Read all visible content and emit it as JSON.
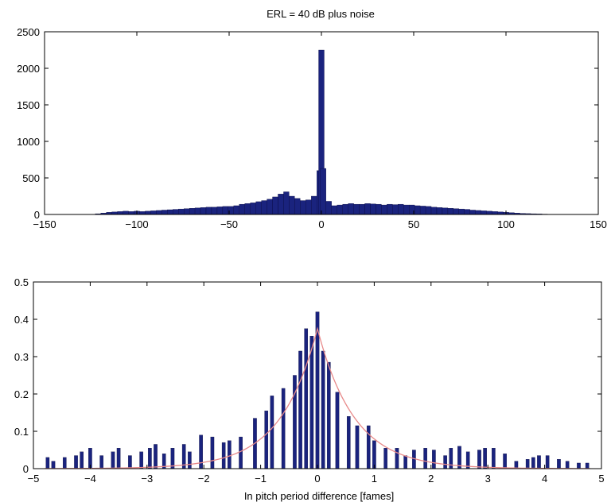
{
  "chart_data": [
    {
      "type": "bar",
      "title": "ERL = 40 dB plus noise",
      "xlabel": "",
      "ylabel": "",
      "xlim": [
        -150,
        150
      ],
      "ylim": [
        0,
        2500
      ],
      "xticks": [
        -150,
        -100,
        -50,
        0,
        50,
        100,
        150
      ],
      "yticks": [
        0,
        500,
        1000,
        1500,
        2000,
        2500
      ],
      "xtick_labels": [
        "−150",
        "−100",
        "−50",
        "0",
        "50",
        "100",
        "150"
      ],
      "ytick_labels": [
        "0",
        "500",
        "1000",
        "1500",
        "2000",
        "2500"
      ],
      "bar_width": 3,
      "bar_color": "#1a237e",
      "series": [
        {
          "x": [
            -121,
            -118,
            -115,
            -112,
            -109,
            -106,
            -103,
            -100,
            -97,
            -94,
            -91,
            -88,
            -85,
            -82,
            -79,
            -76,
            -73,
            -70,
            -67,
            -64,
            -61,
            -58,
            -55,
            -52,
            -49,
            -46,
            -43,
            -40,
            -37,
            -34,
            -31,
            -28,
            -25,
            -22,
            -19,
            -16,
            -13,
            -10,
            -7,
            -4,
            -1,
            0,
            1,
            4,
            7,
            10,
            13,
            16,
            19,
            22,
            25,
            28,
            31,
            34,
            37,
            40,
            43,
            46,
            49,
            52,
            55,
            58,
            61,
            64,
            67,
            70,
            73,
            76,
            79,
            82,
            85,
            88,
            91,
            94,
            97,
            100,
            103,
            106,
            109,
            112,
            115,
            118,
            121
          ],
          "values": [
            10,
            20,
            30,
            35,
            40,
            45,
            40,
            45,
            40,
            45,
            50,
            55,
            60,
            65,
            70,
            75,
            80,
            85,
            90,
            95,
            100,
            100,
            105,
            110,
            110,
            120,
            140,
            150,
            160,
            175,
            190,
            210,
            240,
            280,
            310,
            250,
            220,
            190,
            200,
            250,
            600,
            2250,
            630,
            180,
            120,
            130,
            140,
            150,
            140,
            140,
            150,
            145,
            140,
            130,
            140,
            135,
            140,
            130,
            130,
            120,
            115,
            110,
            100,
            95,
            90,
            85,
            80,
            75,
            70,
            60,
            55,
            50,
            45,
            40,
            35,
            30,
            25,
            20,
            15,
            12,
            10,
            8,
            5
          ]
        }
      ]
    },
    {
      "type": "bar",
      "title": "",
      "xlabel": "In pitch period difference [fames]",
      "ylabel": "",
      "xlim": [
        -5,
        5
      ],
      "ylim": [
        0,
        0.5
      ],
      "xticks": [
        -5,
        -4,
        -3,
        -2,
        -1,
        0,
        1,
        2,
        3,
        4,
        5
      ],
      "yticks": [
        0,
        0.1,
        0.2,
        0.3,
        0.4,
        0.5
      ],
      "xtick_labels": [
        "−5",
        "−4",
        "−3",
        "−2",
        "−1",
        "0",
        "1",
        "2",
        "3",
        "4",
        "5"
      ],
      "ytick_labels": [
        "0",
        "0.1",
        "0.2",
        "0.3",
        "0.4",
        "0.5"
      ],
      "bar_width": 0.06,
      "bar_color": "#1a237e",
      "fit_color": "#e88a8a",
      "fit_peak": 0.375,
      "fit_decay": 1.55,
      "fit_xrange": [
        -4.8,
        4.8
      ],
      "series": [
        {
          "x": [
            -4.75,
            -4.65,
            -4.45,
            -4.25,
            -4.15,
            -4.0,
            -3.8,
            -3.6,
            -3.5,
            -3.3,
            -3.1,
            -2.95,
            -2.85,
            -2.7,
            -2.55,
            -2.35,
            -2.25,
            -2.05,
            -1.85,
            -1.65,
            -1.55,
            -1.35,
            -1.1,
            -0.9,
            -0.8,
            -0.6,
            -0.4,
            -0.3,
            -0.2,
            -0.1,
            0.0,
            0.1,
            0.2,
            0.35,
            0.55,
            0.7,
            0.9,
            1.0,
            1.2,
            1.4,
            1.55,
            1.7,
            1.9,
            2.05,
            2.25,
            2.35,
            2.5,
            2.65,
            2.85,
            2.95,
            3.1,
            3.3,
            3.5,
            3.7,
            3.8,
            3.9,
            4.05,
            4.25,
            4.4,
            4.6,
            4.75
          ],
          "values": [
            0.03,
            0.02,
            0.03,
            0.035,
            0.045,
            0.055,
            0.035,
            0.045,
            0.055,
            0.035,
            0.045,
            0.055,
            0.065,
            0.04,
            0.055,
            0.065,
            0.045,
            0.09,
            0.085,
            0.07,
            0.075,
            0.085,
            0.135,
            0.155,
            0.195,
            0.215,
            0.25,
            0.315,
            0.375,
            0.355,
            0.42,
            0.315,
            0.285,
            0.205,
            0.14,
            0.115,
            0.115,
            0.075,
            0.055,
            0.055,
            0.035,
            0.05,
            0.055,
            0.05,
            0.035,
            0.055,
            0.06,
            0.045,
            0.05,
            0.055,
            0.055,
            0.04,
            0.02,
            0.025,
            0.03,
            0.035,
            0.035,
            0.025,
            0.02,
            0.015,
            0.015
          ]
        }
      ]
    }
  ]
}
